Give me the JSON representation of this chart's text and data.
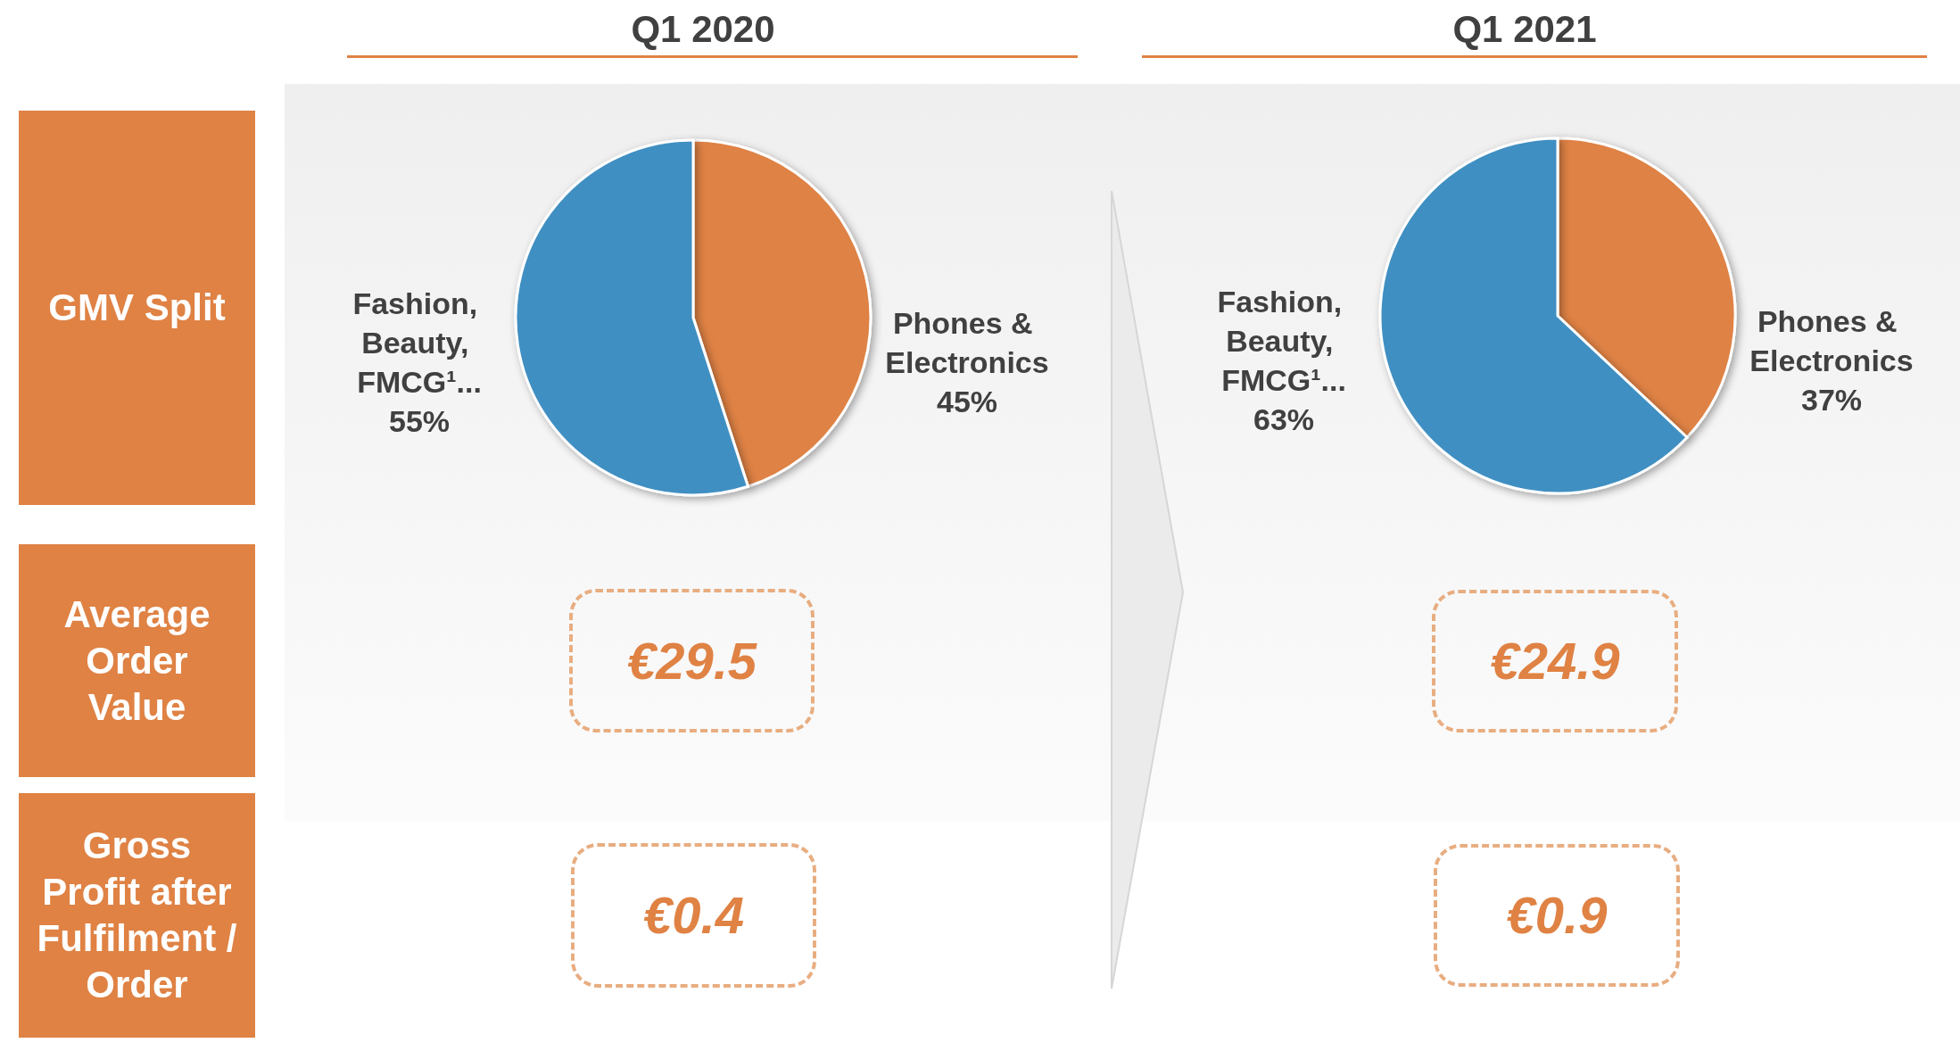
{
  "chart_data": [
    {
      "type": "other",
      "annotations": [
        "GMV Split",
        "Average\nOrder\nValue",
        "Gross\nProfit after\nFulfilment /\nOrder"
      ]
    },
    {
      "type": "pie",
      "title": "Q1 2020",
      "categories": [
        "Phones & Electronics",
        "Fashion, Beauty, FMCG¹..."
      ],
      "values": [
        45,
        55
      ],
      "colors": [
        "#df8244",
        "#3f8fc2"
      ],
      "value_labels": [
        "45%",
        "55%"
      ]
    },
    {
      "type": "pie",
      "title": "Q1 2021",
      "categories": [
        "Phones & Electronics",
        "Fashion, Beauty, FMCG¹..."
      ],
      "values": [
        37,
        63
      ],
      "colors": [
        "#df8244",
        "#3f8fc2"
      ],
      "value_labels": [
        "37%",
        "63%"
      ]
    },
    {
      "type": "other",
      "annotations": [
        "€29.5",
        "€0.4"
      ]
    },
    {
      "type": "other",
      "annotations": [
        "€24.9",
        "€0.9"
      ]
    }
  ]
}
